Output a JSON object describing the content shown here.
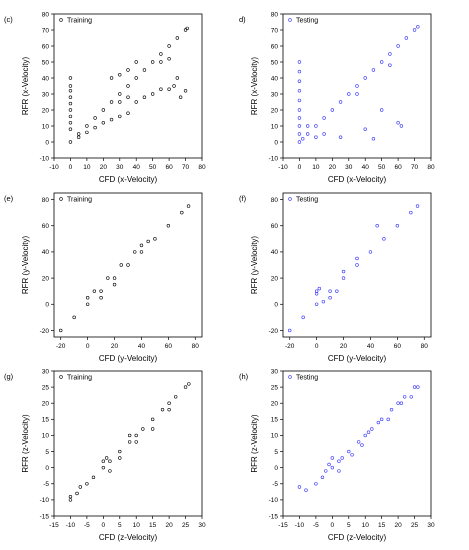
{
  "figure": {
    "colors": {
      "train": "#000000",
      "test": "#3333ff",
      "axis": "#000000",
      "frame": "#000000"
    }
  },
  "chart_data": [
    {
      "id": "c",
      "panel_label": "(c)",
      "type": "scatter",
      "xlabel": "CFD (x-Velocity)",
      "ylabel": "RFR (x-Velocity)",
      "xlim": [
        -10,
        80
      ],
      "ylim": [
        -10,
        80
      ],
      "xticks": [
        -10,
        0,
        10,
        20,
        30,
        40,
        50,
        60,
        70,
        80
      ],
      "yticks": [
        -10,
        0,
        10,
        20,
        30,
        40,
        50,
        60,
        70,
        80
      ],
      "grid": false,
      "legend_position": "top-left",
      "series": [
        {
          "name": "Training",
          "color": "#000000",
          "marker": "circle",
          "points": [
            [
              0,
              0
            ],
            [
              5,
              5
            ],
            [
              10,
              10
            ],
            [
              15,
              15
            ],
            [
              20,
              20
            ],
            [
              25,
              25
            ],
            [
              30,
              30
            ],
            [
              35,
              35
            ],
            [
              40,
              40
            ],
            [
              45,
              45
            ],
            [
              50,
              50
            ],
            [
              55,
              55
            ],
            [
              60,
              60
            ],
            [
              65,
              65
            ],
            [
              70,
              70
            ],
            [
              71,
              71
            ],
            [
              0,
              40
            ],
            [
              0,
              35
            ],
            [
              0,
              32
            ],
            [
              0,
              28
            ],
            [
              0,
              24
            ],
            [
              0,
              20
            ],
            [
              0,
              16
            ],
            [
              0,
              12
            ],
            [
              0,
              8
            ],
            [
              5,
              3
            ],
            [
              10,
              6
            ],
            [
              15,
              9
            ],
            [
              20,
              12
            ],
            [
              25,
              14
            ],
            [
              30,
              16
            ],
            [
              35,
              18
            ],
            [
              30,
              25
            ],
            [
              35,
              28
            ],
            [
              40,
              25
            ],
            [
              45,
              28
            ],
            [
              50,
              30
            ],
            [
              55,
              33
            ],
            [
              60,
              33
            ],
            [
              63,
              35
            ],
            [
              65,
              40
            ],
            [
              67,
              28
            ],
            [
              70,
              32
            ],
            [
              35,
              45
            ],
            [
              40,
              50
            ],
            [
              25,
              40
            ],
            [
              30,
              42
            ],
            [
              55,
              50
            ],
            [
              60,
              52
            ]
          ]
        }
      ]
    },
    {
      "id": "d",
      "panel_label": "d)",
      "type": "scatter",
      "xlabel": "CFD (x-Velocity)",
      "ylabel": "RFR (x-Velocity)",
      "xlim": [
        -10,
        80
      ],
      "ylim": [
        -10,
        80
      ],
      "xticks": [
        -10,
        0,
        10,
        20,
        30,
        40,
        50,
        60,
        70,
        80
      ],
      "yticks": [
        -10,
        0,
        10,
        20,
        30,
        40,
        50,
        60,
        70,
        80
      ],
      "grid": false,
      "legend_position": "top-left",
      "series": [
        {
          "name": "Testing",
          "color": "#3333ff",
          "marker": "circle",
          "points": [
            [
              0,
              0
            ],
            [
              5,
              5
            ],
            [
              10,
              10
            ],
            [
              15,
              15
            ],
            [
              20,
              20
            ],
            [
              25,
              25
            ],
            [
              30,
              30
            ],
            [
              35,
              35
            ],
            [
              40,
              40
            ],
            [
              45,
              45
            ],
            [
              50,
              50
            ],
            [
              55,
              55
            ],
            [
              60,
              60
            ],
            [
              65,
              65
            ],
            [
              70,
              70
            ],
            [
              72,
              72
            ],
            [
              0,
              50
            ],
            [
              0,
              44
            ],
            [
              0,
              38
            ],
            [
              0,
              32
            ],
            [
              0,
              26
            ],
            [
              0,
              20
            ],
            [
              0,
              15
            ],
            [
              0,
              10
            ],
            [
              0,
              5
            ],
            [
              2,
              2
            ],
            [
              5,
              10
            ],
            [
              10,
              3
            ],
            [
              15,
              5
            ],
            [
              25,
              3
            ],
            [
              40,
              8
            ],
            [
              45,
              2
            ],
            [
              60,
              12
            ],
            [
              62,
              10
            ],
            [
              50,
              20
            ],
            [
              35,
              30
            ],
            [
              55,
              48
            ]
          ]
        }
      ]
    },
    {
      "id": "e",
      "panel_label": "(e)",
      "type": "scatter",
      "xlabel": "CFD (y-Velocity)",
      "ylabel": "RFR (y-Velocity)",
      "xlim": [
        -25,
        85
      ],
      "ylim": [
        -25,
        85
      ],
      "xticks": [
        -20,
        0,
        20,
        40,
        60,
        80
      ],
      "yticks": [
        -20,
        0,
        20,
        40,
        60,
        80
      ],
      "grid": false,
      "legend_position": "top-left",
      "series": [
        {
          "name": "Training",
          "color": "#000000",
          "marker": "circle",
          "points": [
            [
              -20,
              -20
            ],
            [
              -10,
              -10
            ],
            [
              0,
              0
            ],
            [
              10,
              10
            ],
            [
              20,
              20
            ],
            [
              30,
              30
            ],
            [
              40,
              40
            ],
            [
              50,
              50
            ],
            [
              60,
              60
            ],
            [
              70,
              70
            ],
            [
              75,
              75
            ],
            [
              0,
              5
            ],
            [
              5,
              10
            ],
            [
              15,
              20
            ],
            [
              25,
              30
            ],
            [
              35,
              40
            ],
            [
              40,
              45
            ],
            [
              45,
              48
            ],
            [
              20,
              15
            ],
            [
              10,
              5
            ]
          ]
        }
      ]
    },
    {
      "id": "f",
      "panel_label": "(f)",
      "type": "scatter",
      "xlabel": "CFD (y-Velocity)",
      "ylabel": "RFR (y-Velocity)",
      "xlim": [
        -25,
        85
      ],
      "ylim": [
        -25,
        85
      ],
      "xticks": [
        -20,
        0,
        20,
        40,
        60,
        80
      ],
      "yticks": [
        -20,
        0,
        20,
        40,
        60,
        80
      ],
      "grid": false,
      "legend_position": "top-left",
      "series": [
        {
          "name": "Testing",
          "color": "#3333ff",
          "marker": "circle",
          "points": [
            [
              -20,
              -20
            ],
            [
              -10,
              -10
            ],
            [
              0,
              0
            ],
            [
              10,
              10
            ],
            [
              20,
              20
            ],
            [
              30,
              30
            ],
            [
              40,
              40
            ],
            [
              50,
              50
            ],
            [
              60,
              60
            ],
            [
              70,
              70
            ],
            [
              75,
              75
            ],
            [
              0,
              10
            ],
            [
              0,
              8
            ],
            [
              2,
              12
            ],
            [
              5,
              2
            ],
            [
              20,
              25
            ],
            [
              30,
              35
            ],
            [
              45,
              60
            ],
            [
              15,
              10
            ],
            [
              10,
              5
            ]
          ]
        }
      ]
    },
    {
      "id": "g",
      "panel_label": "(g)",
      "type": "scatter",
      "xlabel": "CFD (z-Velocity)",
      "ylabel": "RFR (z-Velocity)",
      "xlim": [
        -15,
        30
      ],
      "ylim": [
        -15,
        30
      ],
      "xticks": [
        -15,
        -10,
        -5,
        0,
        5,
        10,
        15,
        20,
        25,
        30
      ],
      "yticks": [
        -15,
        -10,
        -5,
        0,
        5,
        10,
        15,
        20,
        25,
        30
      ],
      "grid": false,
      "legend_position": "top-left",
      "series": [
        {
          "name": "Training",
          "color": "#000000",
          "marker": "circle",
          "points": [
            [
              -10,
              -10
            ],
            [
              -8,
              -8
            ],
            [
              -5,
              -5
            ],
            [
              -3,
              -3
            ],
            [
              0,
              0
            ],
            [
              2,
              2
            ],
            [
              5,
              5
            ],
            [
              8,
              8
            ],
            [
              10,
              10
            ],
            [
              12,
              12
            ],
            [
              15,
              15
            ],
            [
              18,
              18
            ],
            [
              20,
              20
            ],
            [
              22,
              22
            ],
            [
              25,
              25
            ],
            [
              26,
              26
            ],
            [
              -10,
              -9
            ],
            [
              -7,
              -6
            ],
            [
              0,
              2
            ],
            [
              1,
              3
            ],
            [
              2,
              -1
            ],
            [
              5,
              3
            ],
            [
              8,
              10
            ],
            [
              10,
              8
            ],
            [
              15,
              12
            ],
            [
              20,
              18
            ]
          ]
        }
      ]
    },
    {
      "id": "h",
      "panel_label": "(h)",
      "type": "scatter",
      "xlabel": "CFD (z-Velocity)",
      "ylabel": "RFR (z-Velocity)",
      "xlim": [
        -15,
        30
      ],
      "ylim": [
        -15,
        30
      ],
      "xticks": [
        -15,
        -10,
        -5,
        0,
        5,
        10,
        15,
        20,
        25,
        30
      ],
      "yticks": [
        -15,
        -10,
        -5,
        0,
        5,
        10,
        15,
        20,
        25,
        30
      ],
      "grid": false,
      "legend_position": "top-left",
      "series": [
        {
          "name": "Testing",
          "color": "#3333ff",
          "marker": "circle",
          "points": [
            [
              -10,
              -6
            ],
            [
              -8,
              -7
            ],
            [
              -5,
              -5
            ],
            [
              -3,
              -3
            ],
            [
              -2,
              -1
            ],
            [
              0,
              0
            ],
            [
              0,
              3
            ],
            [
              2,
              2
            ],
            [
              3,
              3
            ],
            [
              5,
              5
            ],
            [
              6,
              4
            ],
            [
              8,
              8
            ],
            [
              9,
              7
            ],
            [
              10,
              10
            ],
            [
              11,
              11
            ],
            [
              12,
              12
            ],
            [
              14,
              14
            ],
            [
              15,
              15
            ],
            [
              17,
              15
            ],
            [
              18,
              18
            ],
            [
              20,
              20
            ],
            [
              21,
              20
            ],
            [
              22,
              22
            ],
            [
              24,
              22
            ],
            [
              25,
              25
            ],
            [
              26,
              25
            ],
            [
              -1,
              1
            ],
            [
              2,
              -1
            ]
          ]
        }
      ]
    }
  ]
}
